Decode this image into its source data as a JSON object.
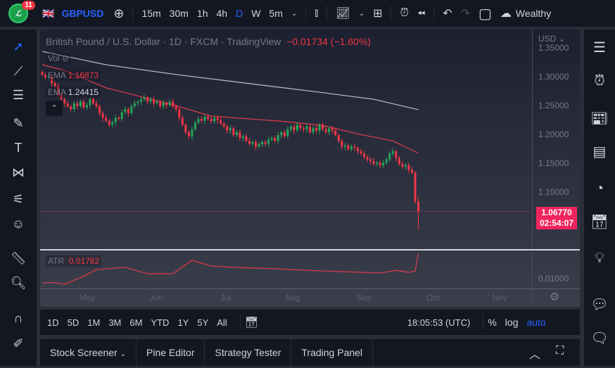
{
  "toolbar": {
    "notification_count": "11",
    "logo_text": "ℒ",
    "symbol": "GBPUSD",
    "intervals": [
      "15m",
      "30m",
      "1h",
      "4h",
      "D",
      "W",
      "5m"
    ],
    "active_interval": "D",
    "account": "Wealthy"
  },
  "legend": {
    "title": "British Pound / U.S. Dollar · 1D · FXCM · TradingView",
    "change": "−0.01734 (−1.60%)",
    "vol_label": "Vol",
    "ema1_label": "EMA",
    "ema1_value": "1.16873",
    "ema2_label": "EMA",
    "ema2_value": "1.24415"
  },
  "price_axis": {
    "currency": "USD",
    "ticks": [
      "1.35000",
      "1.30000",
      "1.25000",
      "1.20000",
      "1.15000",
      "1.10000"
    ],
    "last_price": "1.06770",
    "countdown": "02:54:07"
  },
  "atr": {
    "label": "ATR",
    "value": "0.01782",
    "tick": "0.01000"
  },
  "time_axis": {
    "labels": [
      "May",
      "Jun",
      "Jul",
      "Aug",
      "Sep",
      "Oct",
      "Nov"
    ]
  },
  "range_bar": {
    "ranges": [
      "1D",
      "5D",
      "1M",
      "3M",
      "6M",
      "YTD",
      "1Y",
      "5Y",
      "All"
    ],
    "clock": "18:05:53 (UTC)",
    "percent": "%",
    "log": "log",
    "auto": "auto"
  },
  "bottom_tabs": [
    "Stock Screener",
    "Pine Editor",
    "Strategy Tester",
    "Trading Panel"
  ],
  "colors": {
    "up": "#26a65b",
    "down": "#f23645",
    "ema_fast": "#d63a4a",
    "ema_slow": "#b2b5be",
    "accent": "#2962ff",
    "price_tag": "#f0245e"
  },
  "chart_data": {
    "type": "candlestick",
    "closes": [
      1.305,
      1.3,
      1.302,
      1.29,
      1.285,
      1.27,
      1.262,
      1.255,
      1.25,
      1.245,
      1.255,
      1.25,
      1.258,
      1.248,
      1.252,
      1.262,
      1.255,
      1.25,
      1.238,
      1.23,
      1.225,
      1.218,
      1.222,
      1.23,
      1.228,
      1.24,
      1.245,
      1.238,
      1.25,
      1.255,
      1.258,
      1.262,
      1.265,
      1.258,
      1.262,
      1.255,
      1.258,
      1.25,
      1.256,
      1.252,
      1.258,
      1.25,
      1.245,
      1.23,
      1.218,
      1.205,
      1.198,
      1.21,
      1.222,
      1.228,
      1.225,
      1.232,
      1.228,
      1.224,
      1.23,
      1.226,
      1.22,
      1.215,
      1.208,
      1.212,
      1.2,
      1.205,
      1.195,
      1.198,
      1.19,
      1.185,
      1.188,
      1.18,
      1.184,
      1.188,
      1.185,
      1.192,
      1.195,
      1.19,
      1.2,
      1.205,
      1.198,
      1.21,
      1.215,
      1.208,
      1.218,
      1.212,
      1.21,
      1.215,
      1.205,
      1.212,
      1.208,
      1.218,
      1.21,
      1.205,
      1.212,
      1.208,
      1.2,
      1.19,
      1.18,
      1.182,
      1.176,
      1.18,
      1.178,
      1.172,
      1.168,
      1.162,
      1.158,
      1.155,
      1.15,
      1.152,
      1.148,
      1.152,
      1.158,
      1.168,
      1.172,
      1.16,
      1.15,
      1.145,
      1.148,
      1.14,
      1.135,
      1.085,
      1.0677
    ],
    "final_candle": {
      "open": 1.085,
      "high": 1.0935,
      "low": 1.0355,
      "close": 1.0677
    },
    "ema_slow": [
      [
        0,
        1.345
      ],
      [
        20,
        1.322
      ],
      [
        42,
        1.305
      ],
      [
        64,
        1.29
      ],
      [
        86,
        1.275
      ],
      [
        104,
        1.262
      ],
      [
        118,
        1.244
      ]
    ],
    "ema_fast": [
      [
        0,
        1.322
      ],
      [
        7,
        1.312
      ],
      [
        20,
        1.282
      ],
      [
        42,
        1.251
      ],
      [
        53,
        1.233
      ],
      [
        75,
        1.224
      ],
      [
        88,
        1.217
      ],
      [
        99,
        1.202
      ],
      [
        110,
        1.19
      ],
      [
        118,
        1.1687
      ]
    ],
    "atr_series": [
      [
        0,
        0.0089
      ],
      [
        3,
        0.0091
      ],
      [
        7,
        0.0085
      ],
      [
        12,
        0.0105
      ],
      [
        17,
        0.0129
      ],
      [
        26,
        0.0136
      ],
      [
        33,
        0.0117
      ],
      [
        41,
        0.0117
      ],
      [
        47,
        0.0157
      ],
      [
        53,
        0.014
      ],
      [
        60,
        0.0136
      ],
      [
        75,
        0.0131
      ],
      [
        88,
        0.0125
      ],
      [
        106,
        0.0119
      ],
      [
        111,
        0.0127
      ],
      [
        115,
        0.0121
      ],
      [
        117,
        0.0125
      ],
      [
        118,
        0.01782
      ]
    ],
    "y_range": [
      1.02,
      1.36
    ]
  }
}
